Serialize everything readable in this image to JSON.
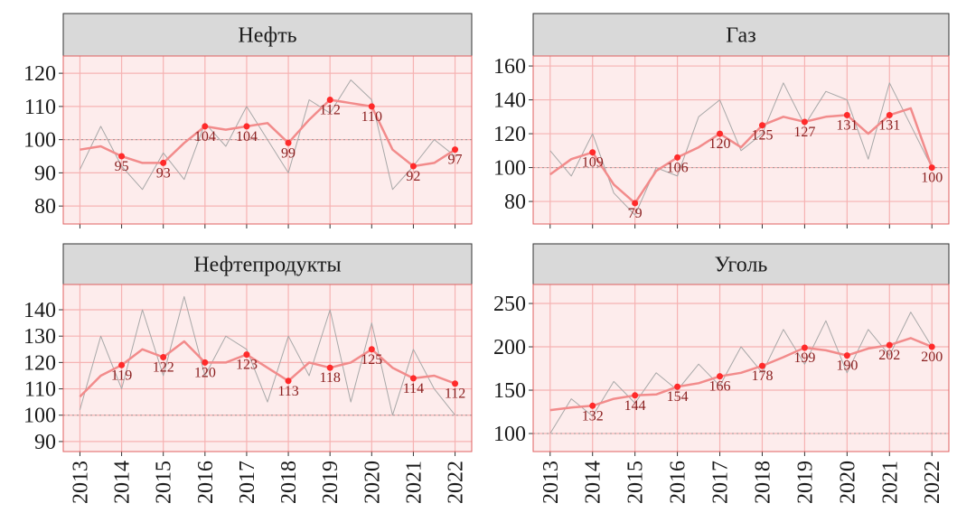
{
  "chart_data": [
    {
      "type": "line",
      "title": "Нефть",
      "x": [
        2013,
        2013.5,
        2014,
        2014.5,
        2015,
        2015.5,
        2016,
        2016.5,
        2017,
        2017.5,
        2018,
        2018.5,
        2019,
        2019.5,
        2020,
        2020.5,
        2021,
        2021.5,
        2022
      ],
      "series": [
        {
          "color": "#a8a8a8",
          "values": [
            91,
            104,
            92,
            85,
            96,
            88,
            105,
            98,
            110,
            100,
            90,
            112,
            108,
            118,
            112,
            85,
            92,
            100,
            95
          ]
        },
        {
          "color": "#f28b8b",
          "values": [
            97,
            98,
            95,
            93,
            93,
            99,
            104,
            103,
            104,
            105,
            99,
            106,
            112,
            111,
            110,
            97,
            92,
            93,
            97
          ]
        }
      ],
      "points": {
        "color": "#ff2a2a",
        "x": [
          2014,
          2015,
          2016,
          2017,
          2018,
          2019,
          2020,
          2021,
          2022
        ],
        "values": [
          95,
          93,
          104,
          104,
          99,
          112,
          110,
          92,
          97
        ]
      },
      "reference": 100,
      "xlim": [
        2012.6,
        2022.4
      ],
      "xticks": [
        2013,
        2014,
        2015,
        2016,
        2017,
        2018,
        2019,
        2020,
        2021,
        2022
      ],
      "ylim": [
        74.6,
        125.2
      ],
      "yticks": [
        80,
        90,
        100,
        110,
        120
      ],
      "grid": true
    },
    {
      "type": "line",
      "title": "Газ",
      "x": [
        2013,
        2013.5,
        2014,
        2014.5,
        2015,
        2015.5,
        2016,
        2016.5,
        2017,
        2017.5,
        2018,
        2018.5,
        2019,
        2019.5,
        2020,
        2020.5,
        2021,
        2021.5,
        2022
      ],
      "series": [
        {
          "color": "#a8a8a8",
          "values": [
            110,
            95,
            120,
            85,
            72,
            100,
            95,
            130,
            140,
            110,
            120,
            150,
            125,
            145,
            140,
            105,
            150,
            125,
            100
          ]
        },
        {
          "color": "#f28b8b",
          "values": [
            96,
            105,
            109,
            90,
            79,
            98,
            106,
            112,
            120,
            112,
            125,
            130,
            127,
            130,
            131,
            120,
            131,
            135,
            100
          ]
        }
      ],
      "points": {
        "color": "#ff2a2a",
        "x": [
          2014,
          2015,
          2016,
          2017,
          2018,
          2019,
          2020,
          2021,
          2022
        ],
        "values": [
          109,
          79,
          106,
          120,
          125,
          127,
          131,
          131,
          100
        ]
      },
      "reference": 100,
      "xlim": [
        2012.6,
        2022.4
      ],
      "xticks": [
        2013,
        2014,
        2015,
        2016,
        2017,
        2018,
        2019,
        2020,
        2021,
        2022
      ],
      "ylim": [
        66.7,
        165.9
      ],
      "yticks": [
        80,
        100,
        120,
        140,
        160
      ],
      "grid": true
    },
    {
      "type": "line",
      "title": "Нефтепродукты",
      "x": [
        2013,
        2013.5,
        2014,
        2014.5,
        2015,
        2015.5,
        2016,
        2016.5,
        2017,
        2017.5,
        2018,
        2018.5,
        2019,
        2019.5,
        2020,
        2020.5,
        2021,
        2021.5,
        2022
      ],
      "series": [
        {
          "color": "#a8a8a8",
          "values": [
            102,
            130,
            110,
            140,
            115,
            145,
            115,
            130,
            125,
            105,
            130,
            115,
            140,
            105,
            135,
            100,
            125,
            110,
            100
          ]
        },
        {
          "color": "#f28b8b",
          "values": [
            107,
            115,
            119,
            125,
            122,
            128,
            120,
            120,
            123,
            118,
            113,
            120,
            118,
            120,
            125,
            118,
            114,
            115,
            112
          ]
        }
      ],
      "points": {
        "color": "#ff2a2a",
        "x": [
          2014,
          2015,
          2016,
          2017,
          2018,
          2019,
          2020,
          2021,
          2022
        ],
        "values": [
          119,
          122,
          120,
          123,
          113,
          118,
          125,
          114,
          112
        ]
      },
      "reference": 100,
      "xlim": [
        2012.6,
        2022.4
      ],
      "xticks": [
        2013,
        2014,
        2015,
        2016,
        2017,
        2018,
        2019,
        2020,
        2021,
        2022
      ],
      "ylim": [
        86.2,
        149.6
      ],
      "yticks": [
        90,
        100,
        110,
        120,
        130,
        140
      ],
      "grid": true
    },
    {
      "type": "line",
      "title": "Уголь",
      "x": [
        2013,
        2013.5,
        2014,
        2014.5,
        2015,
        2015.5,
        2016,
        2016.5,
        2017,
        2017.5,
        2018,
        2018.5,
        2019,
        2019.5,
        2020,
        2020.5,
        2021,
        2021.5,
        2022
      ],
      "series": [
        {
          "color": "#a8a8a8",
          "values": [
            100,
            140,
            120,
            160,
            135,
            170,
            150,
            180,
            155,
            200,
            170,
            220,
            180,
            230,
            170,
            220,
            190,
            240,
            200
          ]
        },
        {
          "color": "#f28b8b",
          "values": [
            127,
            130,
            132,
            140,
            144,
            145,
            154,
            158,
            166,
            170,
            178,
            188,
            199,
            196,
            190,
            198,
            202,
            210,
            200
          ]
        }
      ],
      "points": {
        "color": "#ff2a2a",
        "x": [
          2014,
          2015,
          2016,
          2017,
          2018,
          2019,
          2020,
          2021,
          2022
        ],
        "values": [
          132,
          144,
          154,
          166,
          178,
          199,
          190,
          202,
          200
        ]
      },
      "reference": 100,
      "xlim": [
        2012.6,
        2022.4
      ],
      "xticks": [
        2013,
        2014,
        2015,
        2016,
        2017,
        2018,
        2019,
        2020,
        2021,
        2022
      ],
      "ylim": [
        79.2,
        271.9
      ],
      "yticks": [
        100,
        150,
        200,
        250
      ],
      "grid": true
    }
  ]
}
